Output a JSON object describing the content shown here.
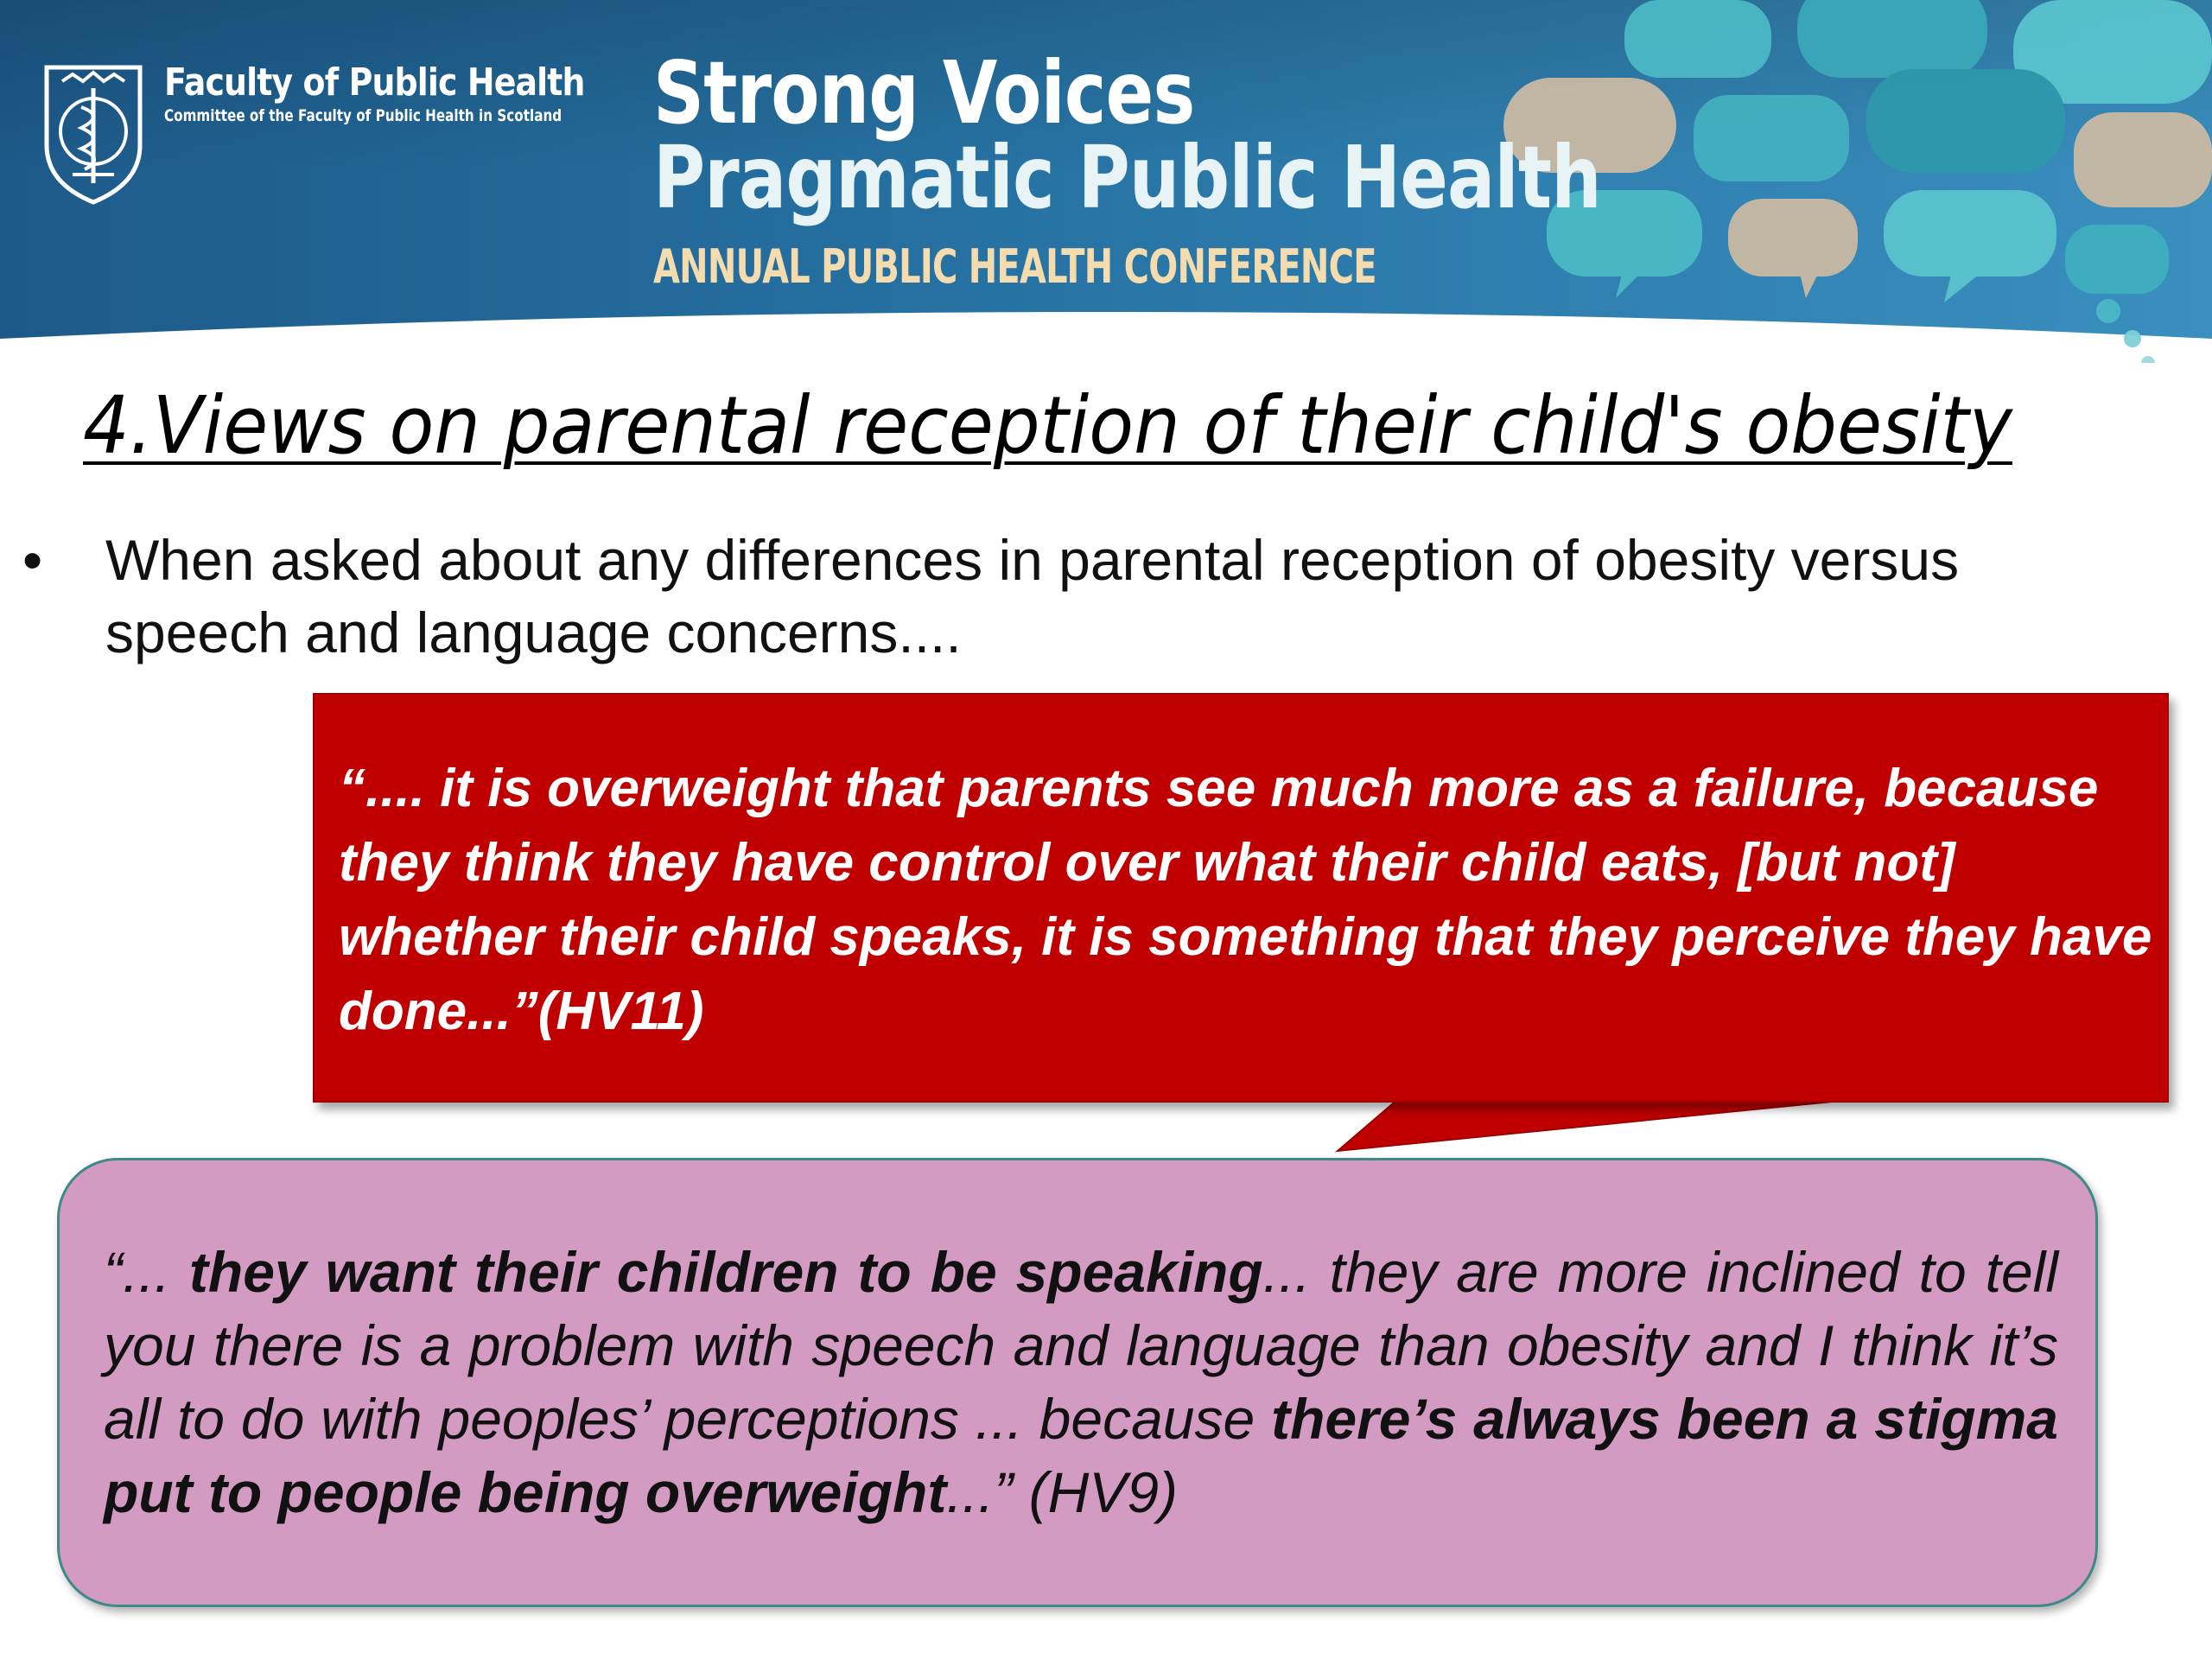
{
  "header": {
    "org_name": "Faculty of Public Health",
    "org_sub": "Committee of the Faculty of Public Health in Scotland",
    "conf_title_line1": "Strong Voices",
    "conf_title_line2": "Pragmatic Public Health",
    "conf_subtitle": "ANNUAL PUBLIC HEALTH CONFERENCE",
    "colors": {
      "banner_dark": "#1f5f8f",
      "banner_mid": "#2e7fae",
      "bubble_teal": "#3fb3c3",
      "bubble_tan": "#c9b9a3",
      "subtitle": "#f4dcae"
    },
    "crest_icon": "caduceus-crest-icon"
  },
  "slide": {
    "title": "4.Views on parental reception of their child's obesity",
    "bullet_symbol": "•",
    "bullet_text": "When asked about any differences in parental reception of obesity versus speech and language concerns....",
    "quote1": {
      "text": "“.... it is overweight that parents see much more as a failure, because they think they have control over what their child eats, [but not] whether their child speaks, it is something that they perceive they have done...”(HV11)",
      "bg_color": "#c00000"
    },
    "quote2": {
      "open": "“... ",
      "bold1": "they want their children to be speaking",
      "mid": "... they are more inclined to tell you there is a problem with speech and language than obesity and I think it’s all to do with peoples’ perceptions ... because ",
      "bold2": "there’s always been a stigma put to people being overweight",
      "close": "...” (HV9)",
      "bg_color": "#d39ac2"
    }
  }
}
